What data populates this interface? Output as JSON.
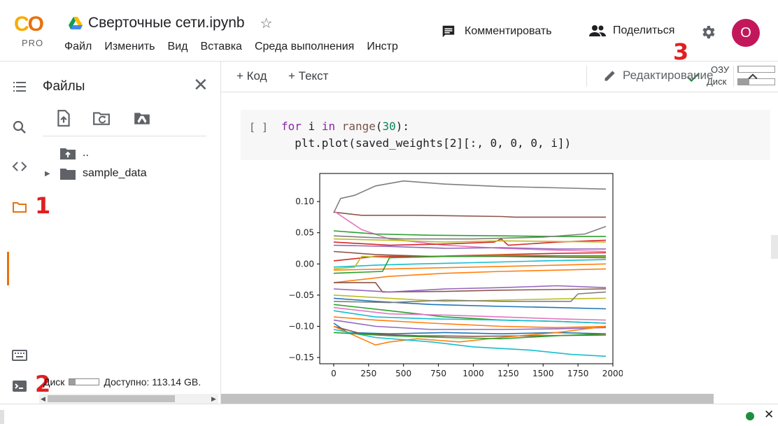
{
  "header": {
    "logo": "CO",
    "logo_sub": "PRO",
    "title": "Сверточные сети.ipynb",
    "menu": [
      "Файл",
      "Изменить",
      "Вид",
      "Вставка",
      "Среда выполнения",
      "Инстр"
    ],
    "comment_label": "Комментировать",
    "share_label": "Поделиться",
    "avatar_letter": "O",
    "avatar_color": "#c2185b"
  },
  "annotations": {
    "one": "1",
    "two": "2",
    "three": "3",
    "color": "#e02020"
  },
  "files_panel": {
    "title": "Файлы",
    "tree": [
      {
        "label": "..",
        "icon": "folder-up-icon"
      },
      {
        "label": "sample_data",
        "icon": "folder-icon"
      }
    ],
    "disk_label": "Диск",
    "disk_fraction": 0.2,
    "available": "Доступно: 113.14 GB."
  },
  "toolbar": {
    "add_code": "+ Код",
    "add_text": "+ Текст",
    "ram_label": "ОЗУ",
    "ram_fraction": 0.02,
    "disk_label": "Диск",
    "disk_fraction": 0.3,
    "edit_label": "Редактирование"
  },
  "cell": {
    "bracket": "[ ]",
    "line1_kw": "for",
    "line1_var": " i ",
    "line1_in": "in",
    "line1_fn": "range",
    "line1_open": "(",
    "line1_num": "30",
    "line1_close": "):",
    "line2": "  plt.plot(saved_weights[2][:, 0, 0, 0, i])"
  },
  "chart_data": {
    "type": "line",
    "xlim": [
      -100,
      2000
    ],
    "ylim": [
      -0.16,
      0.145
    ],
    "xticks": [
      0,
      250,
      500,
      750,
      1000,
      1250,
      1500,
      1750,
      2000
    ],
    "yticks": [
      0.1,
      0.05,
      0.0,
      -0.05,
      -0.1,
      -0.15
    ],
    "ytick_labels": [
      "0.10",
      "0.05",
      "0.00",
      "−0.05",
      "−0.10",
      "−0.15"
    ],
    "grid": false,
    "series": [
      {
        "color": "#7f7f7f",
        "points": [
          [
            0,
            0.082
          ],
          [
            50,
            0.105
          ],
          [
            150,
            0.11
          ],
          [
            300,
            0.125
          ],
          [
            500,
            0.133
          ],
          [
            800,
            0.128
          ],
          [
            1200,
            0.124
          ],
          [
            1600,
            0.122
          ],
          [
            1950,
            0.12
          ]
        ]
      },
      {
        "color": "#8c564b",
        "points": [
          [
            0,
            0.083
          ],
          [
            200,
            0.078
          ],
          [
            600,
            0.078
          ],
          [
            1200,
            0.076
          ],
          [
            1300,
            0.075
          ],
          [
            1950,
            0.075
          ]
        ]
      },
      {
        "color": "#e377c2",
        "points": [
          [
            0,
            0.085
          ],
          [
            100,
            0.07
          ],
          [
            200,
            0.055
          ],
          [
            400,
            0.04
          ],
          [
            800,
            0.03
          ],
          [
            1200,
            0.025
          ],
          [
            1600,
            0.022
          ],
          [
            1950,
            0.02
          ]
        ]
      },
      {
        "color": "#2ca02c",
        "points": [
          [
            0,
            0.053
          ],
          [
            300,
            0.048
          ],
          [
            700,
            0.046
          ],
          [
            1200,
            0.045
          ],
          [
            1600,
            0.044
          ],
          [
            1950,
            0.044
          ]
        ]
      },
      {
        "color": "#7f7f7f",
        "points": [
          [
            0,
            0.045
          ],
          [
            500,
            0.04
          ],
          [
            1000,
            0.04
          ],
          [
            1500,
            0.043
          ],
          [
            1800,
            0.048
          ],
          [
            1950,
            0.06
          ]
        ]
      },
      {
        "color": "#d62728",
        "points": [
          [
            0,
            0.035
          ],
          [
            400,
            0.03
          ],
          [
            800,
            0.032
          ],
          [
            1150,
            0.035
          ],
          [
            1200,
            0.04
          ],
          [
            1250,
            0.03
          ],
          [
            1600,
            0.035
          ],
          [
            1950,
            0.038
          ]
        ]
      },
      {
        "color": "#bcbd22",
        "points": [
          [
            0,
            0.04
          ],
          [
            400,
            0.038
          ],
          [
            800,
            0.035
          ],
          [
            1200,
            0.037
          ],
          [
            1600,
            0.036
          ],
          [
            1950,
            0.035
          ]
        ]
      },
      {
        "color": "#9467bd",
        "points": [
          [
            0,
            0.03
          ],
          [
            400,
            0.028
          ],
          [
            800,
            0.025
          ],
          [
            1200,
            0.026
          ],
          [
            1600,
            0.024
          ],
          [
            1950,
            0.024
          ]
        ]
      },
      {
        "color": "#d62728",
        "points": [
          [
            0,
            0.005
          ],
          [
            300,
            0.012
          ],
          [
            700,
            0.012
          ],
          [
            1200,
            0.015
          ],
          [
            1600,
            0.017
          ],
          [
            1950,
            0.018
          ]
        ]
      },
      {
        "color": "#8c564b",
        "points": [
          [
            0,
            0.02
          ],
          [
            300,
            0.015
          ],
          [
            700,
            0.012
          ],
          [
            1200,
            0.012
          ],
          [
            1950,
            0.01
          ]
        ]
      },
      {
        "color": "#17becf",
        "points": [
          [
            0,
            -0.005
          ],
          [
            300,
            -0.002
          ],
          [
            600,
            0.0
          ],
          [
            1000,
            0.002
          ],
          [
            1500,
            0.005
          ],
          [
            1950,
            0.007
          ]
        ]
      },
      {
        "color": "#ff7f0e",
        "points": [
          [
            0,
            -0.01
          ],
          [
            400,
            -0.008
          ],
          [
            800,
            -0.006
          ],
          [
            1200,
            -0.004
          ],
          [
            1600,
            -0.002
          ],
          [
            1950,
            0.0
          ]
        ]
      },
      {
        "color": "#bcbd22",
        "points": [
          [
            0,
            -0.008
          ],
          [
            150,
            -0.005
          ],
          [
            200,
            0.012
          ],
          [
            400,
            0.01
          ],
          [
            800,
            0.012
          ],
          [
            1200,
            0.014
          ],
          [
            1600,
            0.013
          ],
          [
            1950,
            0.012
          ]
        ]
      },
      {
        "color": "#2ca02c",
        "points": [
          [
            0,
            -0.015
          ],
          [
            350,
            -0.012
          ],
          [
            400,
            0.01
          ],
          [
            800,
            0.012
          ],
          [
            1200,
            0.013
          ],
          [
            1950,
            0.013
          ]
        ]
      },
      {
        "color": "#ff7f0e",
        "points": [
          [
            0,
            -0.03
          ],
          [
            400,
            -0.02
          ],
          [
            800,
            -0.015
          ],
          [
            1200,
            -0.012
          ],
          [
            1600,
            -0.01
          ],
          [
            1950,
            -0.008
          ]
        ]
      },
      {
        "color": "#8c564b",
        "points": [
          [
            0,
            -0.03
          ],
          [
            300,
            -0.03
          ],
          [
            350,
            -0.045
          ],
          [
            800,
            -0.044
          ],
          [
            1200,
            -0.042
          ],
          [
            1950,
            -0.04
          ]
        ]
      },
      {
        "color": "#9467bd",
        "points": [
          [
            0,
            -0.04
          ],
          [
            400,
            -0.045
          ],
          [
            800,
            -0.04
          ],
          [
            1200,
            -0.038
          ],
          [
            1600,
            -0.035
          ],
          [
            1950,
            -0.038
          ]
        ]
      },
      {
        "color": "#bcbd22",
        "points": [
          [
            0,
            -0.05
          ],
          [
            400,
            -0.055
          ],
          [
            800,
            -0.06
          ],
          [
            1200,
            -0.058
          ],
          [
            1600,
            -0.056
          ],
          [
            1950,
            -0.055
          ]
        ]
      },
      {
        "color": "#1f77b4",
        "points": [
          [
            0,
            -0.055
          ],
          [
            300,
            -0.06
          ],
          [
            700,
            -0.065
          ],
          [
            1200,
            -0.068
          ],
          [
            1600,
            -0.07
          ],
          [
            1950,
            -0.072
          ]
        ]
      },
      {
        "color": "#7f7f7f",
        "points": [
          [
            0,
            -0.06
          ],
          [
            400,
            -0.062
          ],
          [
            800,
            -0.058
          ],
          [
            1200,
            -0.06
          ],
          [
            1700,
            -0.06
          ],
          [
            1750,
            -0.048
          ],
          [
            1950,
            -0.045
          ]
        ]
      },
      {
        "color": "#2ca02c",
        "points": [
          [
            0,
            -0.065
          ],
          [
            400,
            -0.075
          ],
          [
            800,
            -0.085
          ],
          [
            1200,
            -0.09
          ],
          [
            1600,
            -0.092
          ],
          [
            1950,
            -0.095
          ]
        ]
      },
      {
        "color": "#e377c2",
        "points": [
          [
            0,
            -0.07
          ],
          [
            400,
            -0.08
          ],
          [
            800,
            -0.082
          ],
          [
            1200,
            -0.085
          ],
          [
            1600,
            -0.088
          ],
          [
            1950,
            -0.09
          ]
        ]
      },
      {
        "color": "#17becf",
        "points": [
          [
            0,
            -0.075
          ],
          [
            300,
            -0.085
          ],
          [
            700,
            -0.088
          ],
          [
            1200,
            -0.09
          ],
          [
            1600,
            -0.092
          ],
          [
            1950,
            -0.095
          ]
        ]
      },
      {
        "color": "#ff7f0e",
        "points": [
          [
            0,
            -0.085
          ],
          [
            300,
            -0.09
          ],
          [
            700,
            -0.095
          ],
          [
            1200,
            -0.1
          ],
          [
            1600,
            -0.102
          ],
          [
            1950,
            -0.1
          ]
        ]
      },
      {
        "color": "#9467bd",
        "points": [
          [
            0,
            -0.09
          ],
          [
            300,
            -0.1
          ],
          [
            700,
            -0.105
          ],
          [
            1200,
            -0.105
          ],
          [
            1600,
            -0.104
          ],
          [
            1950,
            -0.102
          ]
        ]
      },
      {
        "color": "#1f77b4",
        "points": [
          [
            0,
            -0.095
          ],
          [
            100,
            -0.11
          ],
          [
            400,
            -0.112
          ],
          [
            800,
            -0.11
          ],
          [
            1200,
            -0.112
          ],
          [
            1600,
            -0.11
          ],
          [
            1950,
            -0.112
          ]
        ]
      },
      {
        "color": "#8c564b",
        "points": [
          [
            0,
            -0.1
          ],
          [
            200,
            -0.112
          ],
          [
            600,
            -0.115
          ],
          [
            1000,
            -0.116
          ],
          [
            1500,
            -0.115
          ],
          [
            1950,
            -0.114
          ]
        ]
      },
      {
        "color": "#ff7f0e",
        "points": [
          [
            0,
            -0.1
          ],
          [
            200,
            -0.12
          ],
          [
            300,
            -0.13
          ],
          [
            400,
            -0.125
          ],
          [
            600,
            -0.12
          ],
          [
            900,
            -0.125
          ],
          [
            1200,
            -0.118
          ],
          [
            1600,
            -0.11
          ],
          [
            1950,
            -0.1
          ]
        ]
      },
      {
        "color": "#17becf",
        "points": [
          [
            0,
            -0.105
          ],
          [
            300,
            -0.118
          ],
          [
            700,
            -0.125
          ],
          [
            1000,
            -0.133
          ],
          [
            1400,
            -0.138
          ],
          [
            1700,
            -0.145
          ],
          [
            1950,
            -0.148
          ]
        ]
      },
      {
        "color": "#2ca02c",
        "points": [
          [
            0,
            -0.11
          ],
          [
            400,
            -0.115
          ],
          [
            800,
            -0.118
          ],
          [
            1200,
            -0.12
          ],
          [
            1600,
            -0.115
          ],
          [
            1950,
            -0.112
          ]
        ]
      }
    ]
  }
}
